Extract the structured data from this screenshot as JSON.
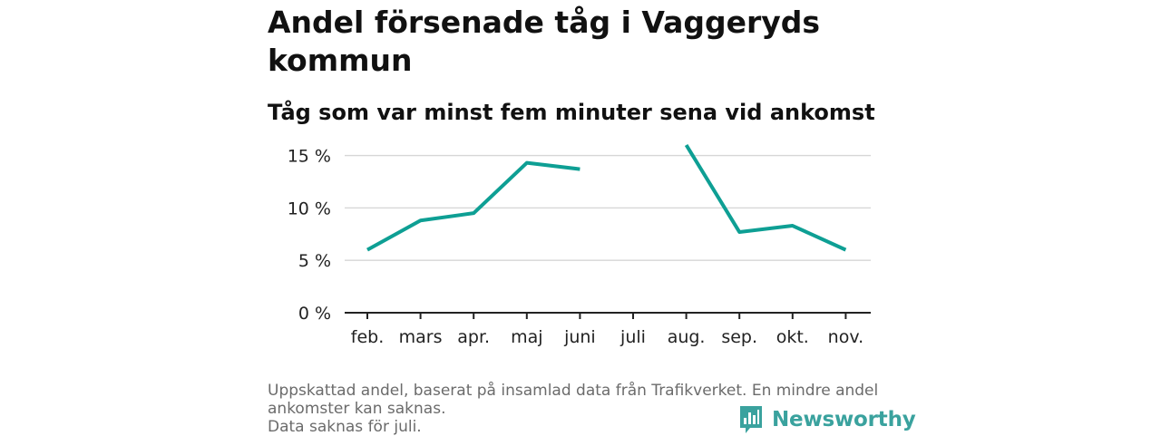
{
  "title": "Andel försenade tåg i Vaggeryds kommun",
  "subtitle": "Tåg som var minst fem minuter sena vid ankomst",
  "footnote": {
    "line1": "Uppskattad andel, baserat på insamlad data från Trafikverket. En mindre andel ankomster kan saknas.",
    "line2": "Data saknas för juli."
  },
  "brand": {
    "name": "Newsworthy",
    "icon": "newsworthy-logo-icon",
    "color": "#3aa29e"
  },
  "chart_data": {
    "type": "line",
    "categories": [
      "feb.",
      "mars",
      "apr.",
      "maj",
      "juni",
      "juli",
      "aug.",
      "sep.",
      "okt.",
      "nov."
    ],
    "series": [
      {
        "values": [
          6.0,
          8.8,
          9.5,
          14.3,
          13.7,
          null,
          16.0,
          7.7,
          8.3,
          6.0
        ],
        "color": "#0e9f94"
      }
    ],
    "yticks": [
      0,
      5,
      10,
      15
    ],
    "ytick_labels": [
      "0 %",
      "5 %",
      "10 %",
      "15 %"
    ],
    "ylim": [
      0,
      16
    ],
    "grid": true,
    "xlabel": "",
    "ylabel": ""
  }
}
